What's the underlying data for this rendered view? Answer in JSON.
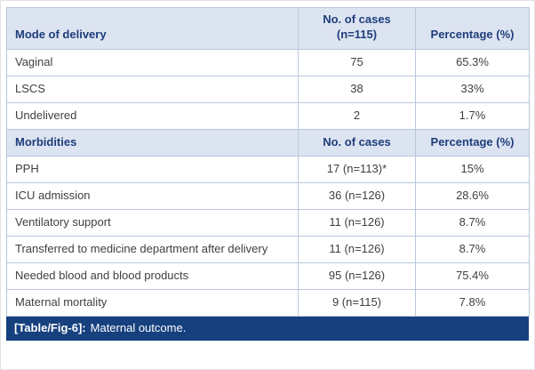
{
  "figure": {
    "caption_label": "[Table/Fig-6]:",
    "caption_text": "Maternal outcome."
  },
  "table": {
    "sections": [
      {
        "header": [
          "Mode of delivery",
          "No. of cases\n(n=115)",
          "Percentage (%)"
        ],
        "rows": [
          [
            "Vaginal",
            "75",
            "65.3%"
          ],
          [
            "LSCS",
            "38",
            "33%"
          ],
          [
            "Undelivered",
            "2",
            "1.7%"
          ]
        ]
      },
      {
        "header": [
          "Morbidities",
          "No. of cases",
          "Percentage (%)"
        ],
        "rows": [
          [
            "PPH",
            "17 (n=113)*",
            "15%"
          ],
          [
            "ICU admission",
            "36 (n=126)",
            "28.6%"
          ],
          [
            "Ventilatory support",
            "11 (n=126)",
            "8.7%"
          ],
          [
            "Transferred to medicine department after delivery",
            "11 (n=126)",
            "8.7%"
          ],
          [
            "Needed blood and blood products",
            "95 (n=126)",
            "75.4%"
          ],
          [
            "Maternal mortality",
            "9 (n=115)",
            "7.8%"
          ]
        ]
      }
    ]
  },
  "colors": {
    "header_bg": "#dde4f1",
    "header_text": "#1e3d7b",
    "body_text": "#404040",
    "grid_border": "#bac7db",
    "outer_border": "#8aa2c4",
    "caption_bg": "#16407e",
    "caption_text": "#ffffff"
  }
}
